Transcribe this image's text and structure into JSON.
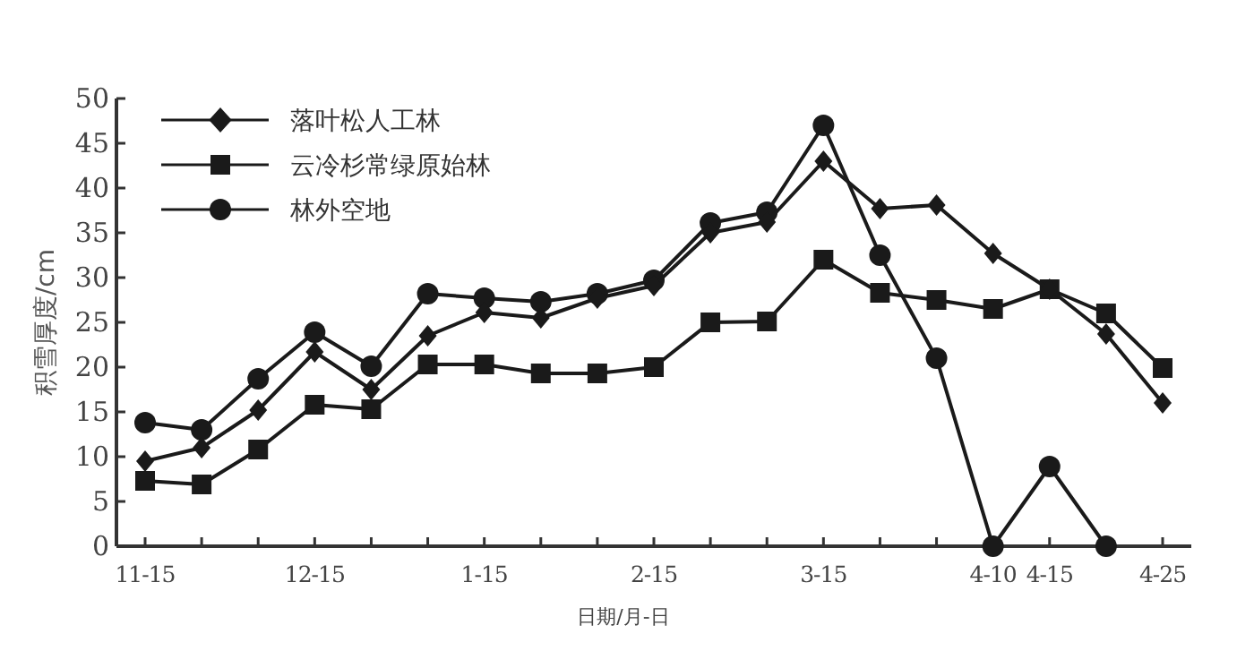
{
  "chart_data": {
    "type": "line",
    "xlabel": "日期/月-日",
    "ylabel": "积雪厚度/cm",
    "categories": [
      "11-15",
      null,
      null,
      "12-15",
      null,
      null,
      "1-15",
      null,
      null,
      "2-15",
      null,
      null,
      "3-15",
      null,
      null,
      "4-10",
      "4-15",
      null,
      "4-25"
    ],
    "series": [
      {
        "name": "落叶松人工林",
        "color": "#1a1a1a",
        "marker": "diamond",
        "values": [
          9.5,
          11,
          15.2,
          21.7,
          17.5,
          23.5,
          26.1,
          25.5,
          27.7,
          29.1,
          35,
          36.2,
          43,
          37.7,
          38.1,
          32.7,
          28.7,
          23.7,
          16
        ]
      },
      {
        "name": "云冷杉常绿原始林",
        "color": "#1a1a1a",
        "marker": "square",
        "values": [
          7.3,
          6.9,
          10.8,
          15.8,
          15.3,
          20.3,
          20.3,
          19.3,
          19.3,
          20,
          25,
          25.1,
          32,
          28.3,
          27.5,
          26.5,
          28.7,
          26,
          19.9
        ]
      },
      {
        "name": "林外空地",
        "color": "#1a1a1a",
        "marker": "circle",
        "values": [
          13.8,
          13,
          18.7,
          23.9,
          20.1,
          28.2,
          27.7,
          27.3,
          28.2,
          29.7,
          36.1,
          37.3,
          47,
          32.5,
          21,
          0,
          8.9,
          0,
          null
        ]
      }
    ],
    "ylim": [
      0,
      50
    ],
    "yticks": [
      0,
      5,
      10,
      15,
      20,
      25,
      30,
      35,
      40,
      45,
      50
    ],
    "grid": false,
    "legend": "top left",
    "line_style": "solid"
  }
}
